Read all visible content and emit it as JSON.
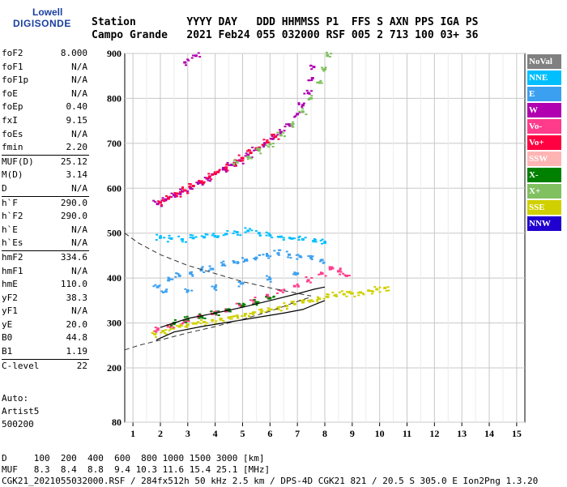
{
  "logo": {
    "line1": "Lowell",
    "line2": "DIGISONDE"
  },
  "header": {
    "labels": "Station        YYYY DAY   DDD HHMMSS P1  FFS S AXN PPS IGA PS",
    "values": "Campo Grande   2021 Feb24 055 032000 RSF 005 2 713 100 03+ 36"
  },
  "params": {
    "group1": [
      {
        "name": "foF2",
        "value": "8.000"
      },
      {
        "name": "foF1",
        "value": "N/A"
      },
      {
        "name": "foF1p",
        "value": "N/A"
      },
      {
        "name": "foE",
        "value": "N/A"
      },
      {
        "name": "foEp",
        "value": "0.40"
      },
      {
        "name": "fxI",
        "value": "9.15"
      },
      {
        "name": "foEs",
        "value": "N/A"
      },
      {
        "name": "fmin",
        "value": "2.20"
      }
    ],
    "group2": [
      {
        "name": "MUF(D)",
        "value": "25.12"
      },
      {
        "name": "M(D)",
        "value": "3.14"
      },
      {
        "name": "D",
        "value": "N/A"
      }
    ],
    "group3": [
      {
        "name": "h`F",
        "value": "290.0"
      },
      {
        "name": "h`F2",
        "value": "290.0"
      },
      {
        "name": "h`E",
        "value": "N/A"
      },
      {
        "name": "h`Es",
        "value": "N/A"
      }
    ],
    "group4": [
      {
        "name": "hmF2",
        "value": "334.6"
      },
      {
        "name": "hmF1",
        "value": "N/A"
      },
      {
        "name": "hmE",
        "value": "110.0"
      },
      {
        "name": "yF2",
        "value": "38.3"
      },
      {
        "name": "yF1",
        "value": "N/A"
      },
      {
        "name": "yE",
        "value": "20.0"
      },
      {
        "name": "B0",
        "value": "44.8"
      },
      {
        "name": "B1",
        "value": "1.19"
      }
    ],
    "group5": [
      {
        "name": "C-level",
        "value": "22"
      }
    ]
  },
  "auto": {
    "line1": "Auto:",
    "line2": "Artist5",
    "line3": "500200"
  },
  "legend": [
    {
      "label": "NoVal",
      "color": "#808080",
      "text": "#ffffff"
    },
    {
      "label": "NNE",
      "color": "#00bfff",
      "text": "#ffffff"
    },
    {
      "label": "E",
      "color": "#3ca0f0",
      "text": "#ffffff"
    },
    {
      "label": "W",
      "color": "#b000b0",
      "text": "#ffffff"
    },
    {
      "label": "Vo-",
      "color": "#ff3c8c",
      "text": "#ffffff"
    },
    {
      "label": "Vo+",
      "color": "#ff0040",
      "text": "#ffffff"
    },
    {
      "label": "SSW",
      "color": "#ffb4b4",
      "text": "#ffffff"
    },
    {
      "label": "X-",
      "color": "#008000",
      "text": "#ffffff"
    },
    {
      "label": "X+",
      "color": "#80c060",
      "text": "#ffffff"
    },
    {
      "label": "SSE",
      "color": "#d0d000",
      "text": "#ffffff"
    },
    {
      "label": "NNW",
      "color": "#2000d0",
      "text": "#ffffff"
    }
  ],
  "footer": {
    "line1": "D     100  200  400  600  800 1000 1500 3000 [km]",
    "line2": "MUF   8.3  8.4  8.8  9.4 10.3 11.6 15.4 25.1 [MHz]",
    "line3": "CGK21_2021055032000.RSF / 284fx512h 50 kHz 2.5 km / DPS-4D CGK21 821 / 20.5 S 305.0 E Ion2Png 1.3.20"
  },
  "chart_data": {
    "type": "scatter",
    "title": "",
    "xlabel": "",
    "ylabel": "",
    "xlim": [
      0.7,
      15.3
    ],
    "ylim": [
      80,
      900
    ],
    "x_ticks": [
      "1",
      "2",
      "3",
      "4",
      "5",
      "6",
      "7",
      "8",
      "9",
      "10",
      "11",
      "12",
      "13",
      "14",
      "15"
    ],
    "y_ticks": [
      "80",
      "200",
      "300",
      "400",
      "500",
      "600",
      "700",
      "800",
      "900"
    ],
    "grid": true,
    "series": [
      {
        "name": "W",
        "color": "#b000b0",
        "points": [
          [
            1.9,
            565
          ],
          [
            2.2,
            575
          ],
          [
            2.5,
            585
          ],
          [
            2.8,
            593
          ],
          [
            3.1,
            600
          ],
          [
            3.4,
            612
          ],
          [
            3.7,
            622
          ],
          [
            4.0,
            632
          ],
          [
            4.3,
            642
          ],
          [
            4.6,
            652
          ],
          [
            4.9,
            662
          ],
          [
            5.2,
            674
          ],
          [
            5.5,
            686
          ],
          [
            5.8,
            697
          ],
          [
            6.1,
            710
          ],
          [
            6.4,
            725
          ],
          [
            6.7,
            742
          ],
          [
            7.0,
            765
          ],
          [
            7.2,
            785
          ],
          [
            7.4,
            812
          ],
          [
            7.55,
            845
          ],
          [
            7.6,
            870
          ],
          [
            2.9,
            880
          ],
          [
            3.3,
            895
          ]
        ]
      },
      {
        "name": "Vo+",
        "color": "#ff0040",
        "points": [
          [
            2.0,
            568
          ],
          [
            2.3,
            578
          ],
          [
            2.6,
            588
          ],
          [
            2.9,
            595
          ],
          [
            3.2,
            605
          ],
          [
            3.5,
            615
          ],
          [
            3.8,
            626
          ],
          [
            4.1,
            636
          ],
          [
            4.4,
            646
          ],
          [
            4.7,
            656
          ],
          [
            5.0,
            667
          ],
          [
            5.3,
            679
          ],
          [
            5.6,
            690
          ],
          [
            5.9,
            702
          ],
          [
            6.2,
            715
          ]
        ]
      },
      {
        "name": "X+",
        "color": "#80c060",
        "points": [
          [
            4.8,
            658
          ],
          [
            5.2,
            670
          ],
          [
            5.6,
            684
          ],
          [
            6.0,
            698
          ],
          [
            6.4,
            718
          ],
          [
            6.8,
            742
          ],
          [
            7.2,
            770
          ],
          [
            7.5,
            800
          ],
          [
            7.8,
            835
          ],
          [
            8.0,
            865
          ],
          [
            8.1,
            895
          ]
        ]
      },
      {
        "name": "NNE",
        "color": "#00bfff",
        "points": [
          [
            2.0,
            490
          ],
          [
            2.4,
            488
          ],
          [
            2.8,
            486
          ],
          [
            3.2,
            489
          ],
          [
            3.6,
            491
          ],
          [
            4.0,
            493
          ],
          [
            4.4,
            498
          ],
          [
            4.8,
            502
          ],
          [
            5.2,
            505
          ],
          [
            5.6,
            500
          ],
          [
            6.0,
            495
          ],
          [
            6.4,
            492
          ],
          [
            6.8,
            488
          ],
          [
            7.2,
            486
          ],
          [
            7.6,
            482
          ],
          [
            8.0,
            479
          ]
        ]
      },
      {
        "name": "E",
        "color": "#3ca0f0",
        "points": [
          [
            1.9,
            380
          ],
          [
            2.3,
            395
          ],
          [
            2.7,
            405
          ],
          [
            3.1,
            410
          ],
          [
            3.5,
            418
          ],
          [
            3.9,
            420
          ],
          [
            4.3,
            430
          ],
          [
            4.7,
            435
          ],
          [
            5.1,
            440
          ],
          [
            5.5,
            445
          ],
          [
            5.9,
            450
          ],
          [
            6.3,
            455
          ],
          [
            6.7,
            452
          ],
          [
            7.1,
            448
          ],
          [
            7.5,
            445
          ],
          [
            7.9,
            440
          ],
          [
            2.2,
            370
          ],
          [
            3.0,
            372
          ],
          [
            4.0,
            380
          ],
          [
            5.0,
            388
          ],
          [
            6.0,
            398
          ],
          [
            7.0,
            410
          ]
        ]
      },
      {
        "name": "SSE",
        "color": "#d0d000",
        "points": [
          [
            1.8,
            275
          ],
          [
            2.1,
            282
          ],
          [
            2.4,
            288
          ],
          [
            2.7,
            292
          ],
          [
            3.0,
            296
          ],
          [
            3.3,
            299
          ],
          [
            3.6,
            302
          ],
          [
            3.9,
            306
          ],
          [
            4.2,
            309
          ],
          [
            4.5,
            312
          ],
          [
            4.8,
            316
          ],
          [
            5.1,
            320
          ],
          [
            5.4,
            323
          ],
          [
            5.7,
            326
          ],
          [
            6.0,
            330
          ],
          [
            6.3,
            334
          ],
          [
            6.6,
            338
          ],
          [
            6.9,
            342
          ],
          [
            7.2,
            346
          ],
          [
            7.5,
            350
          ],
          [
            7.8,
            354
          ],
          [
            8.1,
            358
          ],
          [
            8.4,
            362
          ],
          [
            8.7,
            364
          ],
          [
            9.0,
            366
          ],
          [
            9.3,
            368
          ],
          [
            9.6,
            372
          ],
          [
            9.9,
            375
          ],
          [
            10.2,
            378
          ]
        ]
      },
      {
        "name": "Vo-",
        "color": "#ff3c8c",
        "points": [
          [
            1.9,
            285
          ],
          [
            2.4,
            295
          ],
          [
            2.9,
            305
          ],
          [
            3.4,
            312
          ],
          [
            3.9,
            320
          ],
          [
            4.4,
            330
          ],
          [
            4.9,
            340
          ],
          [
            5.4,
            350
          ],
          [
            5.9,
            362
          ],
          [
            6.4,
            372
          ],
          [
            6.9,
            382
          ],
          [
            7.4,
            395
          ],
          [
            7.9,
            410
          ],
          [
            8.2,
            420
          ],
          [
            8.5,
            415
          ],
          [
            8.8,
            405
          ]
        ]
      },
      {
        "name": "X-",
        "color": "#008000",
        "points": [
          [
            2.5,
            300
          ],
          [
            3.0,
            308
          ],
          [
            3.5,
            314
          ],
          [
            4.0,
            322
          ],
          [
            4.5,
            330
          ],
          [
            5.0,
            338
          ],
          [
            5.5,
            346
          ],
          [
            6.0,
            355
          ]
        ]
      }
    ],
    "profile": {
      "solid": [
        [
          1.85,
          262
        ],
        [
          2.5,
          280
        ],
        [
          3.5,
          292
        ],
        [
          4.5,
          302
        ],
        [
          5.5,
          312
        ],
        [
          6.5,
          322
        ],
        [
          7.2,
          330
        ],
        [
          7.8,
          345
        ],
        [
          8.0,
          350
        ]
      ],
      "solid2": [
        [
          2.0,
          290
        ],
        [
          3.0,
          310
        ],
        [
          4.0,
          322
        ],
        [
          5.0,
          335
        ],
        [
          6.0,
          350
        ],
        [
          7.0,
          365
        ],
        [
          7.6,
          375
        ],
        [
          8.0,
          380
        ]
      ],
      "dashed_upper": [
        [
          0.7,
          500
        ],
        [
          1.2,
          478
        ],
        [
          2.0,
          452
        ],
        [
          3.0,
          428
        ],
        [
          4.0,
          410
        ],
        [
          5.0,
          392
        ],
        [
          6.0,
          378
        ],
        [
          7.0,
          366
        ],
        [
          7.5,
          360
        ]
      ],
      "dashed_lower": [
        [
          0.7,
          240
        ],
        [
          1.2,
          250
        ],
        [
          2.0,
          262
        ],
        [
          3.0,
          278
        ],
        [
          4.0,
          292
        ],
        [
          5.0,
          308
        ],
        [
          6.0,
          326
        ],
        [
          7.0,
          348
        ],
        [
          7.5,
          358
        ]
      ]
    }
  }
}
